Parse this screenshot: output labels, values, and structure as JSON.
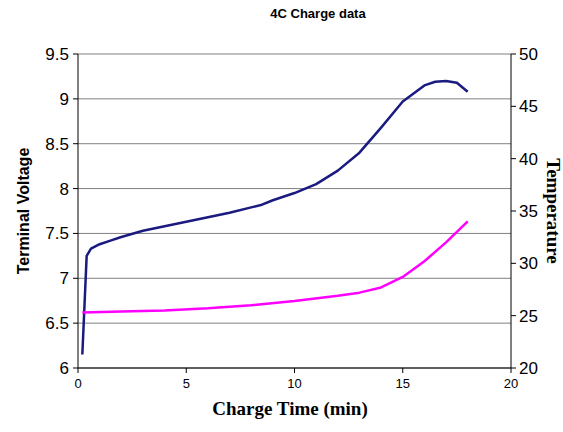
{
  "chart_data": {
    "type": "line",
    "title": "4C Charge data",
    "x_label": "Charge Time (min)",
    "y_label": "Terminal Voltage",
    "y2_label": "Temperature",
    "xlim": [
      0,
      20
    ],
    "xticks": [
      0,
      5,
      10,
      15,
      20
    ],
    "ylim": [
      6,
      9.5
    ],
    "yticks": [
      6,
      6.5,
      7,
      7.5,
      8,
      8.5,
      9,
      9.5
    ],
    "y2lim": [
      20,
      50
    ],
    "y2ticks": [
      20,
      25,
      30,
      35,
      40,
      45,
      50
    ],
    "grid": true,
    "series": [
      {
        "color": "#1a1a80",
        "x": [
          0.2,
          0.3,
          0.4,
          0.6,
          1,
          1.5,
          2,
          3,
          4,
          5,
          6,
          7,
          8,
          8.5,
          9,
          10,
          11,
          12,
          13,
          14,
          15,
          16,
          16.5,
          17,
          17.5,
          18
        ],
        "values": [
          6.15,
          6.7,
          7.25,
          7.33,
          7.38,
          7.42,
          7.46,
          7.53,
          7.58,
          7.63,
          7.68,
          7.73,
          7.79,
          7.82,
          7.87,
          7.95,
          8.05,
          8.2,
          8.4,
          8.68,
          8.97,
          9.15,
          9.19,
          9.2,
          9.18,
          9.08
        ]
      },
      {
        "color": "#ff00ff",
        "axis": "y2",
        "x": [
          0.2,
          2,
          4,
          6,
          8,
          10,
          12,
          13,
          14,
          15,
          16,
          17,
          18
        ],
        "values": [
          25.3,
          25.4,
          25.5,
          25.7,
          26,
          26.4,
          26.9,
          27.2,
          27.7,
          28.7,
          30.2,
          32,
          34
        ]
      }
    ]
  }
}
